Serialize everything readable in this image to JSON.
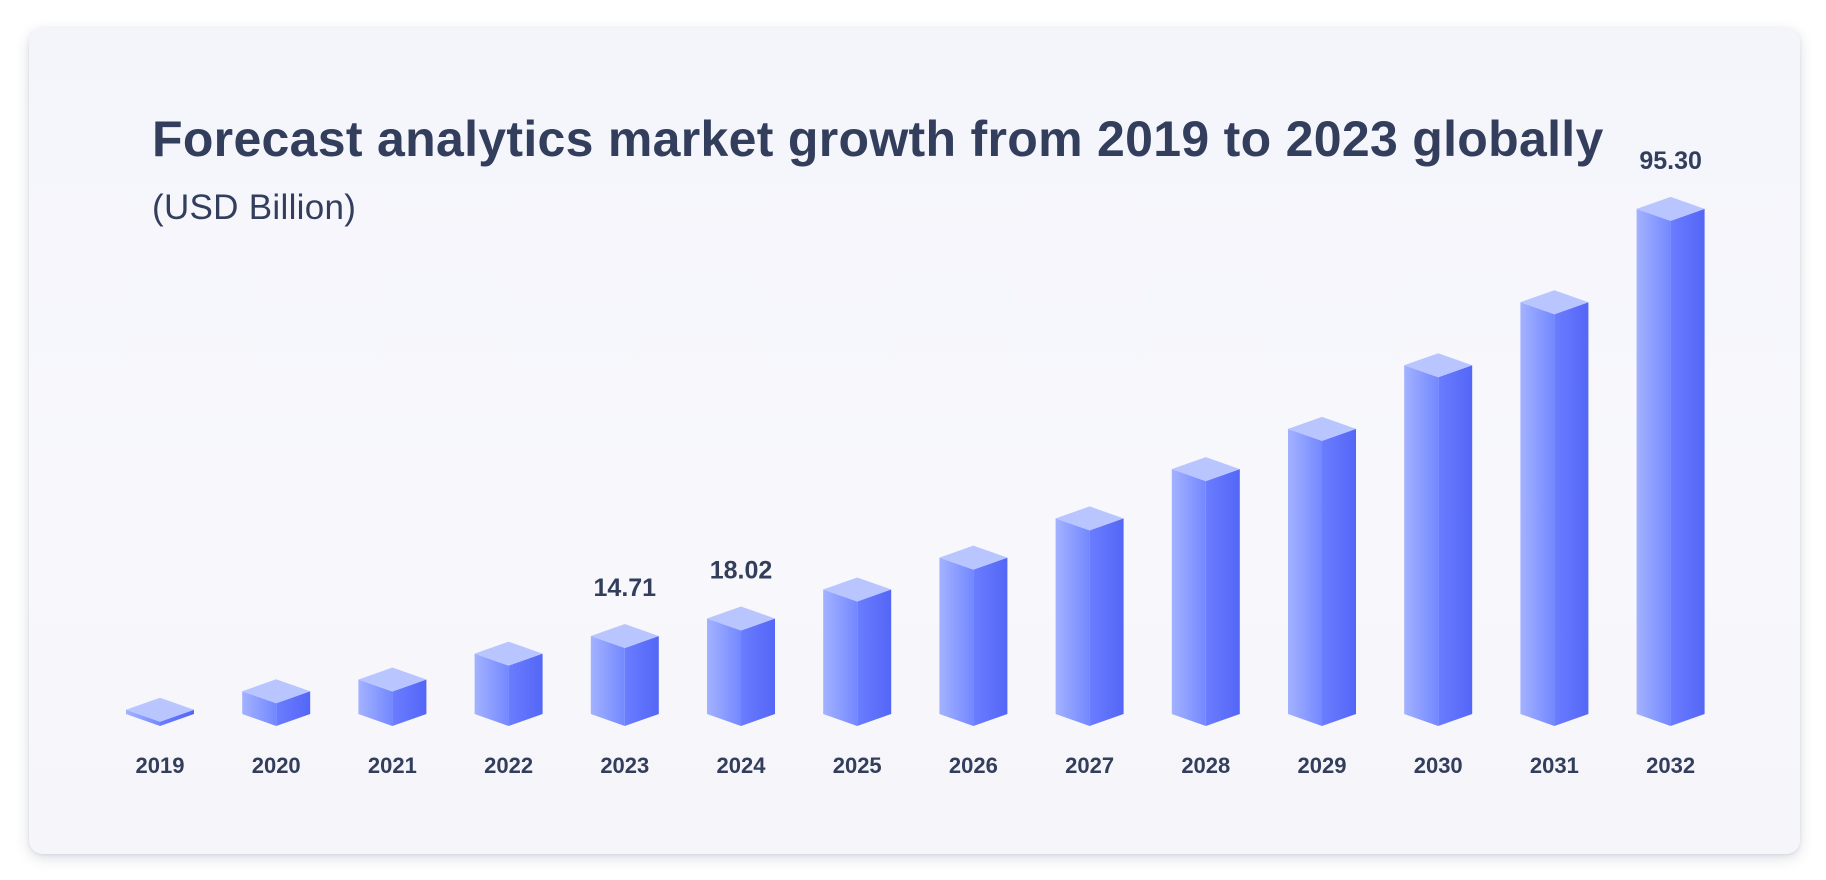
{
  "title": "Forecast analytics market growth from 2019 to 2023 globally",
  "subtitle": "(USD Billion)",
  "colors": {
    "text": "#323e5c",
    "bar_left_light": "#a3b2ff",
    "bar_left_dark": "#7388ff",
    "bar_right_light": "#6a7dff",
    "bar_right_dark": "#5466f6",
    "bar_top": "#b8c5ff"
  },
  "chart_data": {
    "type": "bar",
    "title": "Forecast analytics market growth from 2019 to 2023 globally",
    "subtitle": "(USD Billion)",
    "xlabel": "",
    "ylabel": "",
    "style": "3d-columns",
    "grid": false,
    "legend": "none",
    "ylim": [
      0,
      100
    ],
    "categories": [
      "2019",
      "2020",
      "2021",
      "2022",
      "2023",
      "2024",
      "2025",
      "2026",
      "2027",
      "2028",
      "2029",
      "2030",
      "2031",
      "2032"
    ],
    "values": [
      0.8,
      4.3,
      6.5,
      11.4,
      14.71,
      18.02,
      23.5,
      29.5,
      36.9,
      46.2,
      53.8,
      65.8,
      77.7,
      95.3
    ],
    "data_labels": [
      {
        "index": 4,
        "text": "14.71"
      },
      {
        "index": 5,
        "text": "18.02"
      },
      {
        "index": 13,
        "text": "95.30"
      }
    ]
  }
}
